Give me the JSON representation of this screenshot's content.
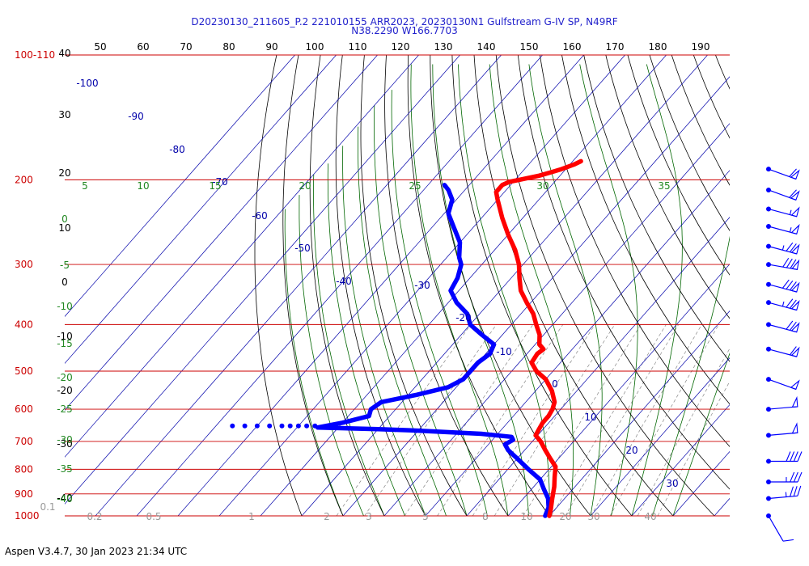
{
  "header": {
    "line1": "D20230130_211605_P.2 221010155 ARR2023, 20230130N1 Gulfstream G-IV SP, N49RF",
    "line2": "N38.2290 W166.7703"
  },
  "footer": {
    "version": "Aspen V3.4.7, 30 Jan 2023  21:34 UTC"
  },
  "colors": {
    "temperature": "#ff0000",
    "dewpoint": "#0000ff",
    "isobar": "#cc0000",
    "isotherm": "#0000aa",
    "dry_adiabat": "#000000",
    "moist_adiabat": "#006600",
    "mixing_ratio": "#888888"
  },
  "chart_data": {
    "type": "skew-t",
    "y_axis": {
      "scale": "log-pressure",
      "unit_hint": "hPa",
      "range": [
        110,
        1000
      ],
      "tick_labels": [
        "100-110",
        "200",
        "300",
        "400",
        "500",
        "600",
        "700",
        "800",
        "900",
        "1000"
      ],
      "tick_values": [
        110,
        200,
        300,
        400,
        500,
        600,
        700,
        800,
        900,
        1000
      ]
    },
    "top_labels": [
      "50",
      "60",
      "70",
      "80",
      "90",
      "100",
      "110",
      "120",
      "130",
      "140",
      "150",
      "160",
      "170",
      "180",
      "190"
    ],
    "left_labels": [
      "40",
      "30",
      "20",
      "10",
      "0",
      "-10",
      "-20",
      "-30",
      "-40"
    ],
    "isotherm_labels": [
      {
        "text": "-100",
        "t": -100
      },
      {
        "text": "-90",
        "t": -90
      },
      {
        "text": "-80",
        "t": -80
      },
      {
        "text": "-70",
        "t": -70
      },
      {
        "text": "-60",
        "t": -60
      },
      {
        "text": "-50",
        "t": -50
      },
      {
        "text": "-40",
        "t": -40
      },
      {
        "text": "-30",
        "t": -30
      },
      {
        "text": "-20",
        "t": -20
      },
      {
        "text": "-10",
        "t": -10
      },
      {
        "text": "0",
        "t": 0
      },
      {
        "text": "10",
        "t": 10
      },
      {
        "text": "20",
        "t": 20
      },
      {
        "text": "30",
        "t": 30
      }
    ],
    "moist_labels_top": [
      "5",
      "10",
      "15",
      "20",
      "25",
      "30",
      "35"
    ],
    "moist_labels_left": [
      "0",
      "-5",
      "-10",
      "-15",
      "-20",
      "-25",
      "-30",
      "-35",
      "-40"
    ],
    "mixing_labels": [
      "0.1",
      "0.2",
      "0.5",
      "1",
      "2",
      "3",
      "5",
      "8",
      "10",
      "20",
      "30",
      "40"
    ],
    "temperature_profile": [
      {
        "p": 183,
        "t": -58
      },
      {
        "p": 186,
        "t": -59
      },
      {
        "p": 190,
        "t": -61
      },
      {
        "p": 193,
        "t": -63
      },
      {
        "p": 196,
        "t": -65
      },
      {
        "p": 198,
        "t": -67
      },
      {
        "p": 200,
        "t": -69
      },
      {
        "p": 202,
        "t": -71
      },
      {
        "p": 205,
        "t": -72
      },
      {
        "p": 212,
        "t": -72
      },
      {
        "p": 220,
        "t": -70
      },
      {
        "p": 240,
        "t": -65
      },
      {
        "p": 260,
        "t": -60
      },
      {
        "p": 280,
        "t": -55
      },
      {
        "p": 300,
        "t": -51
      },
      {
        "p": 320,
        "t": -48
      },
      {
        "p": 340,
        "t": -45
      },
      {
        "p": 360,
        "t": -41
      },
      {
        "p": 380,
        "t": -37
      },
      {
        "p": 400,
        "t": -34
      },
      {
        "p": 420,
        "t": -31
      },
      {
        "p": 440,
        "t": -29
      },
      {
        "p": 450,
        "t": -27
      },
      {
        "p": 460,
        "t": -27.5
      },
      {
        "p": 480,
        "t": -27
      },
      {
        "p": 500,
        "t": -24
      },
      {
        "p": 520,
        "t": -20
      },
      {
        "p": 550,
        "t": -16
      },
      {
        "p": 580,
        "t": -13
      },
      {
        "p": 600,
        "t": -12
      },
      {
        "p": 620,
        "t": -11.5
      },
      {
        "p": 640,
        "t": -11.5
      },
      {
        "p": 660,
        "t": -11
      },
      {
        "p": 680,
        "t": -10.5
      },
      {
        "p": 700,
        "t": -8
      },
      {
        "p": 730,
        "t": -5
      },
      {
        "p": 760,
        "t": -2
      },
      {
        "p": 790,
        "t": 1
      },
      {
        "p": 830,
        "t": 3
      },
      {
        "p": 870,
        "t": 5
      },
      {
        "p": 920,
        "t": 7
      },
      {
        "p": 970,
        "t": 9
      },
      {
        "p": 1000,
        "t": 10
      }
    ],
    "dewpoint_profile": [
      {
        "p": 205,
        "t": -86
      },
      {
        "p": 210,
        "t": -84
      },
      {
        "p": 220,
        "t": -81
      },
      {
        "p": 235,
        "t": -79
      },
      {
        "p": 250,
        "t": -75
      },
      {
        "p": 270,
        "t": -70
      },
      {
        "p": 290,
        "t": -67
      },
      {
        "p": 300,
        "t": -65
      },
      {
        "p": 320,
        "t": -63
      },
      {
        "p": 340,
        "t": -62
      },
      {
        "p": 360,
        "t": -58
      },
      {
        "p": 380,
        "t": -53
      },
      {
        "p": 400,
        "t": -50
      },
      {
        "p": 420,
        "t": -45
      },
      {
        "p": 440,
        "t": -40
      },
      {
        "p": 460,
        "t": -39
      },
      {
        "p": 480,
        "t": -40
      },
      {
        "p": 500,
        "t": -40
      },
      {
        "p": 520,
        "t": -40
      },
      {
        "p": 540,
        "t": -42
      },
      {
        "p": 560,
        "t": -48
      },
      {
        "p": 580,
        "t": -55
      },
      {
        "p": 600,
        "t": -56
      },
      {
        "p": 620,
        "t": -55
      },
      {
        "p": 640,
        "t": -60
      },
      {
        "p": 655,
        "t": -65
      },
      {
        "p": 660,
        "t": -50
      },
      {
        "p": 665,
        "t": -40
      },
      {
        "p": 675,
        "t": -24
      },
      {
        "p": 685,
        "t": -16
      },
      {
        "p": 695,
        "t": -15
      },
      {
        "p": 710,
        "t": -16
      },
      {
        "p": 730,
        "t": -14
      },
      {
        "p": 760,
        "t": -10
      },
      {
        "p": 800,
        "t": -5
      },
      {
        "p": 840,
        "t": 0
      },
      {
        "p": 880,
        "t": 3
      },
      {
        "p": 920,
        "t": 6
      },
      {
        "p": 960,
        "t": 8
      },
      {
        "p": 1000,
        "t": 9
      }
    ],
    "dewpoint_dots": [
      {
        "p": 650,
        "t": -86
      },
      {
        "p": 650,
        "t": -83
      },
      {
        "p": 650,
        "t": -80
      },
      {
        "p": 650,
        "t": -77
      },
      {
        "p": 650,
        "t": -74
      },
      {
        "p": 650,
        "t": -72
      },
      {
        "p": 650,
        "t": -70
      },
      {
        "p": 650,
        "t": -68
      },
      {
        "p": 650,
        "t": -66
      }
    ],
    "wind_barbs": [
      {
        "p": 190,
        "dir": 250,
        "spd": 60
      },
      {
        "p": 210,
        "dir": 250,
        "spd": 60
      },
      {
        "p": 230,
        "dir": 255,
        "spd": 55
      },
      {
        "p": 250,
        "dir": 255,
        "spd": 55
      },
      {
        "p": 275,
        "dir": 255,
        "spd": 75
      },
      {
        "p": 300,
        "dir": 260,
        "spd": 80
      },
      {
        "p": 330,
        "dir": 255,
        "spd": 80
      },
      {
        "p": 360,
        "dir": 255,
        "spd": 75
      },
      {
        "p": 400,
        "dir": 255,
        "spd": 70
      },
      {
        "p": 450,
        "dir": 255,
        "spd": 60
      },
      {
        "p": 520,
        "dir": 250,
        "spd": 50
      },
      {
        "p": 600,
        "dir": 275,
        "spd": 50
      },
      {
        "p": 680,
        "dir": 275,
        "spd": 50
      },
      {
        "p": 770,
        "dir": 270,
        "spd": 40
      },
      {
        "p": 850,
        "dir": 270,
        "spd": 35
      },
      {
        "p": 920,
        "dir": 275,
        "spd": 35
      },
      {
        "p": 1000,
        "dir": 210,
        "spd": 10
      }
    ]
  }
}
